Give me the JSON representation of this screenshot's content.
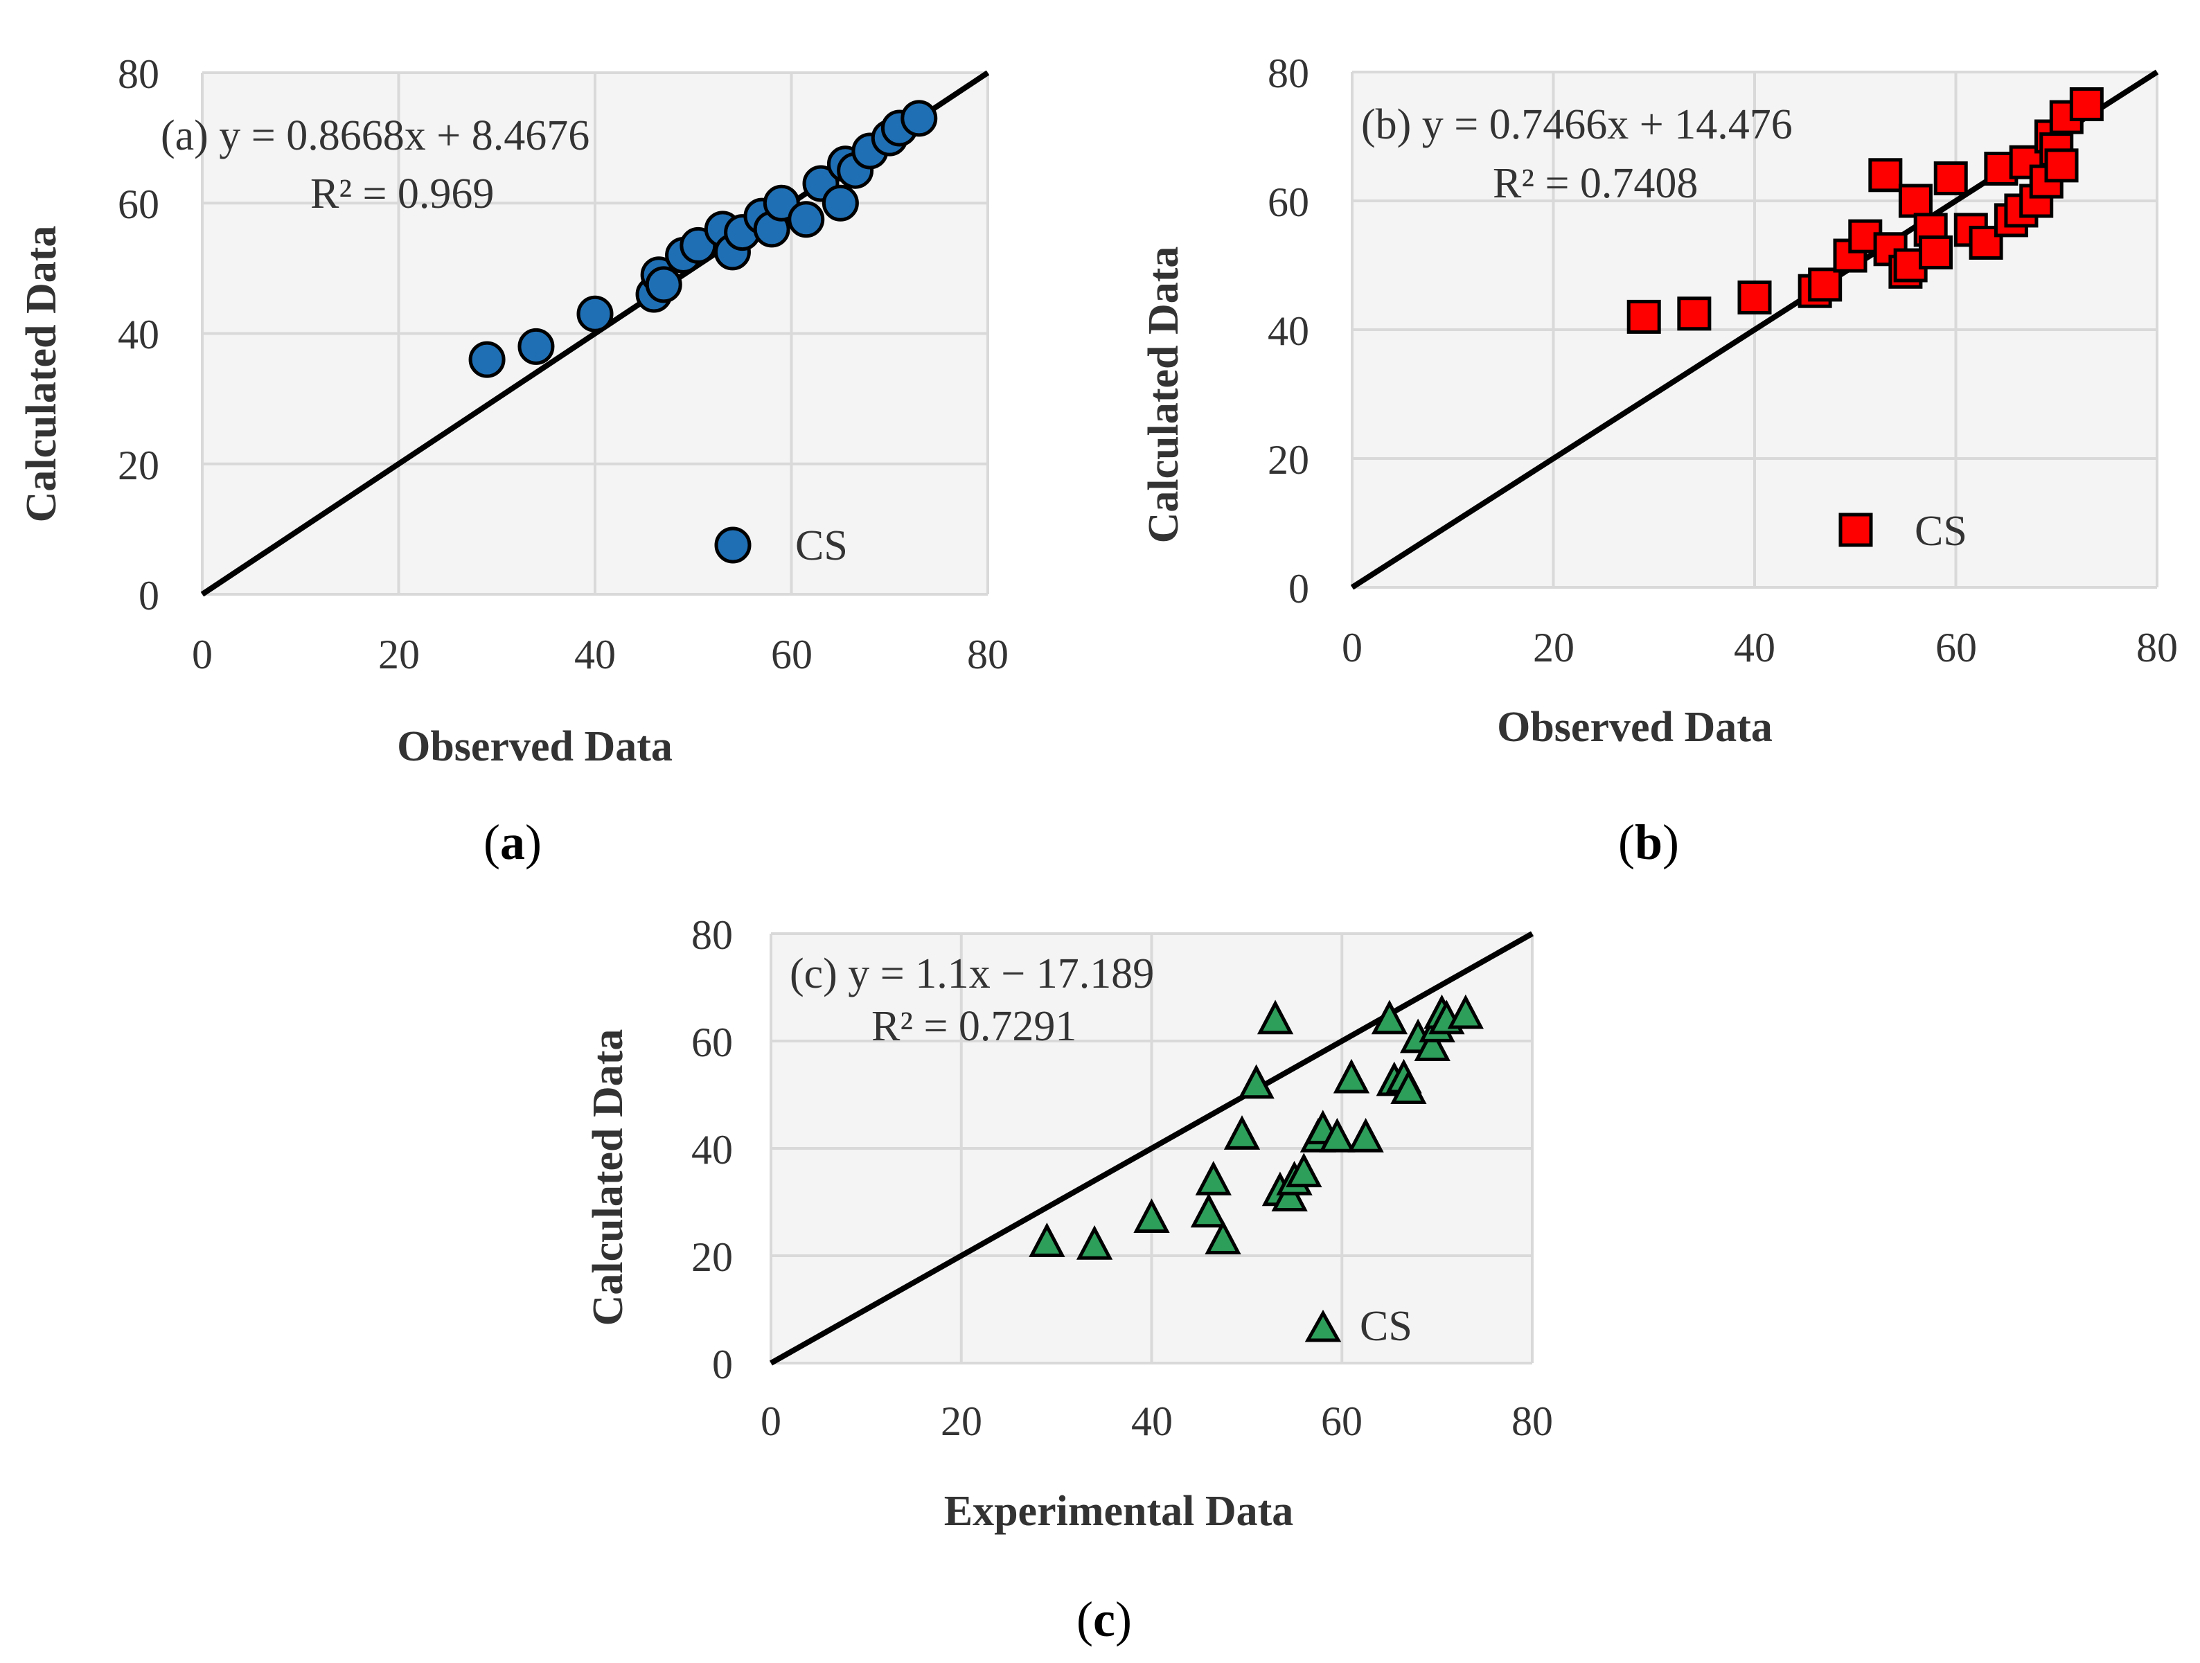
{
  "colors": {
    "a_marker": "#1f6fb4",
    "b_marker": "#ff0000",
    "c_marker": "#2e9e5b",
    "axis_text": "#333333",
    "grid": "#d9d9d9",
    "line": "#000000"
  },
  "chart_data": [
    {
      "type": "scatter",
      "panel": "a",
      "marker": "circle",
      "xlabel": "Observed Data",
      "ylabel": "Calculated Data",
      "xlim": [
        0,
        80
      ],
      "ylim": [
        0,
        80
      ],
      "xticks": [
        "0",
        "20",
        "40",
        "60",
        "80"
      ],
      "yticks": [
        "0",
        "20",
        "40",
        "60",
        "80"
      ],
      "equation_line1": "(a) y = 0.8668x + 8.4676",
      "equation_line2": "R² = 0.969",
      "legend": "CS",
      "legend_position": "bottom-right",
      "caption_open": "(",
      "caption_letter": "a",
      "caption_close": ")",
      "line": {
        "x": [
          0,
          80
        ],
        "y": [
          0,
          80
        ]
      },
      "series": [
        {
          "name": "CS",
          "points": [
            [
              29,
              36
            ],
            [
              34,
              38
            ],
            [
              40,
              43
            ],
            [
              46,
              46
            ],
            [
              46.5,
              49
            ],
            [
              47,
              47.5
            ],
            [
              49,
              52
            ],
            [
              50.5,
              53.5
            ],
            [
              53,
              56
            ],
            [
              54,
              52.5
            ],
            [
              55,
              55.5
            ],
            [
              57,
              58
            ],
            [
              58,
              56
            ],
            [
              59,
              60
            ],
            [
              61.5,
              57.5
            ],
            [
              63,
              63
            ],
            [
              65,
              60
            ],
            [
              65.5,
              66
            ],
            [
              66.5,
              65
            ],
            [
              68,
              68
            ],
            [
              70,
              70
            ],
            [
              71,
              71.5
            ],
            [
              73,
              73
            ]
          ]
        }
      ]
    },
    {
      "type": "scatter",
      "panel": "b",
      "marker": "square",
      "xlabel": "Observed Data",
      "ylabel": "Calculated Data",
      "xlim": [
        0,
        80
      ],
      "ylim": [
        0,
        80
      ],
      "xticks": [
        "0",
        "20",
        "40",
        "60",
        "80"
      ],
      "yticks": [
        "0",
        "20",
        "40",
        "60",
        "80"
      ],
      "equation_line1": "(b) y = 0.7466x + 14.476",
      "equation_line2": "R² = 0.7408",
      "legend": "CS",
      "legend_position": "bottom-right",
      "caption_open": "(",
      "caption_letter": "b",
      "caption_close": ")",
      "line": {
        "x": [
          0,
          80
        ],
        "y": [
          0,
          80
        ]
      },
      "series": [
        {
          "name": "CS",
          "points": [
            [
              29,
              42
            ],
            [
              34,
              42.5
            ],
            [
              40,
              45
            ],
            [
              46,
              46
            ],
            [
              47,
              47
            ],
            [
              49.5,
              51.5
            ],
            [
              51,
              54.5
            ],
            [
              53,
              64
            ],
            [
              53.5,
              52.5
            ],
            [
              55,
              49
            ],
            [
              55.5,
              50
            ],
            [
              56,
              60
            ],
            [
              57.5,
              55.5
            ],
            [
              58,
              52
            ],
            [
              59.5,
              63.5
            ],
            [
              61.5,
              55.5
            ],
            [
              63,
              53.5
            ],
            [
              64.5,
              65
            ],
            [
              65.5,
              57
            ],
            [
              66.5,
              58.5
            ],
            [
              67,
              66
            ],
            [
              68,
              60
            ],
            [
              69,
              63
            ],
            [
              69.5,
              70
            ],
            [
              70,
              68
            ],
            [
              70.5,
              65.5
            ],
            [
              71,
              73
            ],
            [
              73,
              75
            ]
          ]
        }
      ]
    },
    {
      "type": "scatter",
      "panel": "c",
      "marker": "triangle",
      "xlabel": "Experimental Data",
      "ylabel": "Calculated Data",
      "xlim": [
        0,
        80
      ],
      "ylim": [
        0,
        80
      ],
      "xticks": [
        "0",
        "20",
        "40",
        "60",
        "80"
      ],
      "yticks": [
        "0",
        "20",
        "40",
        "60",
        "80"
      ],
      "equation_line1": "(c) y = 1.1x − 17.189",
      "equation_line2": "R² = 0.7291",
      "legend": "CS",
      "legend_position": "bottom-right",
      "caption_open": "(",
      "caption_letter": "c",
      "caption_close": ")",
      "line": {
        "x": [
          0,
          80
        ],
        "y": [
          0,
          80
        ]
      },
      "series": [
        {
          "name": "CS",
          "points": [
            [
              29,
              22.5
            ],
            [
              34,
              22
            ],
            [
              40,
              27
            ],
            [
              46,
              28
            ],
            [
              46.5,
              34
            ],
            [
              47.5,
              23
            ],
            [
              49.5,
              42.5
            ],
            [
              51,
              52
            ],
            [
              53,
              64
            ],
            [
              53.5,
              32
            ],
            [
              54.5,
              31
            ],
            [
              55,
              34
            ],
            [
              56,
              35.5
            ],
            [
              57.5,
              42
            ],
            [
              58,
              43.5
            ],
            [
              59.5,
              42
            ],
            [
              61,
              53
            ],
            [
              62.5,
              42
            ],
            [
              65,
              64
            ],
            [
              65.5,
              52.5
            ],
            [
              66.5,
              53
            ],
            [
              67,
              51
            ],
            [
              68,
              60.5
            ],
            [
              69.5,
              59
            ],
            [
              70,
              62.5
            ],
            [
              70.5,
              65
            ],
            [
              71,
              64
            ],
            [
              73,
              65
            ]
          ]
        }
      ]
    }
  ]
}
